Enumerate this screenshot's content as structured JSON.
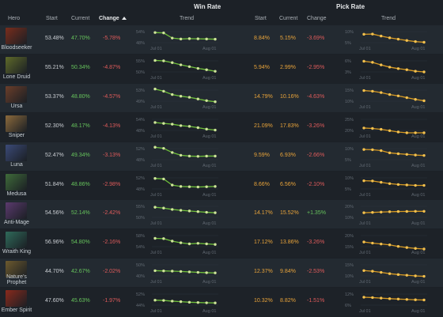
{
  "headers": {
    "win_rate": "Win Rate",
    "pick_rate": "Pick Rate",
    "hero": "Hero",
    "start": "Start",
    "current": "Current",
    "change": "Change",
    "trend": "Trend"
  },
  "axis_labels": {
    "start": "Jul 01",
    "end": "Aug 01"
  },
  "colors": {
    "win_line": "#6fbf3a",
    "win_point": "#cfe59a",
    "pick_line": "#d79a23",
    "pick_point": "#f4c14e",
    "increase": "#66c35c",
    "decrease": "#e05b5b",
    "pick_value": "#e8a33a"
  },
  "rows": [
    {
      "hero": "Bloodseeker",
      "win_start": "53.48%",
      "win_current": "47.70%",
      "win_change": "-5.78%",
      "win_ticks": [
        "54%",
        "48%"
      ],
      "pick_start": "8.84%",
      "pick_current": "5.15%",
      "pick_change": "-3.69%",
      "pick_ticks": [
        "10%",
        "5%"
      ],
      "win_trend": [
        53.5,
        53.3,
        50.5,
        50.0,
        50.2,
        50.1,
        50.0,
        49.9
      ],
      "pick_trend": [
        8.8,
        8.9,
        8.0,
        7.2,
        6.6,
        6.0,
        5.5,
        5.2
      ],
      "portrait": "#7a2d1c"
    },
    {
      "hero": "Lone Druid",
      "win_start": "55.21%",
      "win_current": "50.34%",
      "win_change": "-4.87%",
      "win_ticks": [
        "55%",
        "50%"
      ],
      "pick_start": "5.94%",
      "pick_current": "2.99%",
      "pick_change": "-2.95%",
      "pick_ticks": [
        "6%",
        "3%"
      ],
      "win_trend": [
        55.2,
        55.0,
        54.2,
        53.2,
        52.4,
        51.6,
        51.0,
        50.3
      ],
      "pick_trend": [
        5.9,
        5.6,
        4.9,
        4.3,
        3.9,
        3.6,
        3.2,
        3.0
      ],
      "portrait": "#5f6a2a"
    },
    {
      "hero": "Ursa",
      "win_start": "53.37%",
      "win_current": "48.80%",
      "win_change": "-4.57%",
      "win_ticks": [
        "53%",
        "49%"
      ],
      "pick_start": "14.79%",
      "pick_current": "10.16%",
      "pick_change": "-4.63%",
      "pick_ticks": [
        "15%",
        "10%"
      ],
      "win_trend": [
        53.4,
        52.6,
        51.4,
        50.8,
        50.4,
        49.8,
        49.2,
        48.8
      ],
      "pick_trend": [
        14.8,
        14.5,
        13.9,
        13.0,
        12.4,
        11.6,
        10.8,
        10.2
      ],
      "portrait": "#6b3e2a"
    },
    {
      "hero": "Sniper",
      "win_start": "52.30%",
      "win_current": "48.17%",
      "win_change": "-4.13%",
      "win_ticks": [
        "54%",
        "48%"
      ],
      "pick_start": "21.09%",
      "pick_current": "17.83%",
      "pick_change": "-3.26%",
      "pick_ticks": [
        "25%",
        "20%"
      ],
      "win_trend": [
        52.3,
        51.8,
        51.4,
        50.6,
        50.2,
        49.5,
        48.7,
        48.2
      ],
      "pick_trend": [
        21.1,
        20.9,
        20.5,
        19.9,
        19.3,
        18.7,
        18.2,
        17.8
      ],
      "portrait": "#8c6a3c"
    },
    {
      "hero": "Luna",
      "win_start": "52.47%",
      "win_current": "49.34%",
      "win_change": "-3.13%",
      "win_ticks": [
        "52%",
        "48%"
      ],
      "pick_start": "9.59%",
      "pick_current": "6.93%",
      "pick_change": "-2.66%",
      "pick_ticks": [
        "10%",
        "5%"
      ],
      "win_trend": [
        52.5,
        52.1,
        50.6,
        49.6,
        49.3,
        49.2,
        49.3,
        49.3
      ],
      "pick_trend": [
        9.6,
        9.5,
        9.1,
        8.1,
        7.7,
        7.4,
        7.1,
        6.9
      ],
      "portrait": "#3b4a78"
    },
    {
      "hero": "Medusa",
      "win_start": "51.84%",
      "win_current": "48.86%",
      "win_change": "-2.98%",
      "win_ticks": [
        "52%",
        "48%"
      ],
      "pick_start": "8.66%",
      "pick_current": "6.56%",
      "pick_change": "-2.10%",
      "pick_ticks": [
        "10%",
        "5%"
      ],
      "win_trend": [
        51.8,
        51.6,
        49.4,
        48.9,
        48.8,
        48.7,
        48.8,
        48.9
      ],
      "pick_trend": [
        8.7,
        8.6,
        8.0,
        7.4,
        7.0,
        6.8,
        6.6,
        6.6
      ],
      "portrait": "#3f6b3a"
    },
    {
      "hero": "Anti-Mage",
      "win_start": "54.56%",
      "win_current": "52.14%",
      "win_change": "-2.42%",
      "win_ticks": [
        "55%",
        "50%"
      ],
      "pick_start": "14.17%",
      "pick_current": "15.52%",
      "pick_change": "+1.35%",
      "pick_ticks": [
        "20%",
        "10%"
      ],
      "win_trend": [
        54.6,
        54.2,
        53.6,
        53.2,
        52.9,
        52.6,
        52.3,
        52.1
      ],
      "pick_trend": [
        14.2,
        14.5,
        14.8,
        15.1,
        15.3,
        15.4,
        15.5,
        15.5
      ],
      "portrait": "#5b3a6e"
    },
    {
      "hero": "Wraith King",
      "win_start": "56.96%",
      "win_current": "54.80%",
      "win_change": "-2.16%",
      "win_ticks": [
        "58%",
        "54%"
      ],
      "pick_start": "17.12%",
      "pick_current": "13.86%",
      "pick_change": "-3.26%",
      "pick_ticks": [
        "20%",
        "15%"
      ],
      "win_trend": [
        57.0,
        56.9,
        56.0,
        55.4,
        55.0,
        55.2,
        55.0,
        54.8
      ],
      "pick_trend": [
        17.1,
        16.6,
        16.2,
        15.8,
        15.1,
        14.6,
        14.2,
        13.9
      ],
      "portrait": "#2f6a5a"
    },
    {
      "hero": "Nature's Prophet",
      "win_start": "44.70%",
      "win_current": "42.67%",
      "win_change": "-2.02%",
      "win_ticks": [
        "50%",
        "40%"
      ],
      "pick_start": "12.37%",
      "pick_current": "9.84%",
      "pick_change": "-2.53%",
      "pick_ticks": [
        "15%",
        "10%"
      ],
      "win_trend": [
        44.7,
        44.5,
        44.3,
        44.0,
        43.6,
        43.2,
        42.9,
        42.7
      ],
      "pick_trend": [
        12.4,
        12.1,
        11.6,
        11.0,
        10.6,
        10.3,
        10.0,
        9.8
      ],
      "portrait": "#6d5a2e"
    },
    {
      "hero": "Ember Spirit",
      "win_start": "47.60%",
      "win_current": "45.63%",
      "win_change": "-1.97%",
      "win_ticks": [
        "52%",
        "44%"
      ],
      "pick_start": "10.32%",
      "pick_current": "8.82%",
      "pick_change": "-1.51%",
      "pick_ticks": [
        "12%",
        "6%"
      ],
      "win_trend": [
        47.6,
        47.4,
        46.9,
        46.5,
        46.1,
        45.9,
        45.7,
        45.6
      ],
      "pick_trend": [
        10.3,
        10.1,
        9.8,
        9.5,
        9.3,
        9.1,
        8.9,
        8.8
      ],
      "portrait": "#8a2a1c"
    }
  ]
}
